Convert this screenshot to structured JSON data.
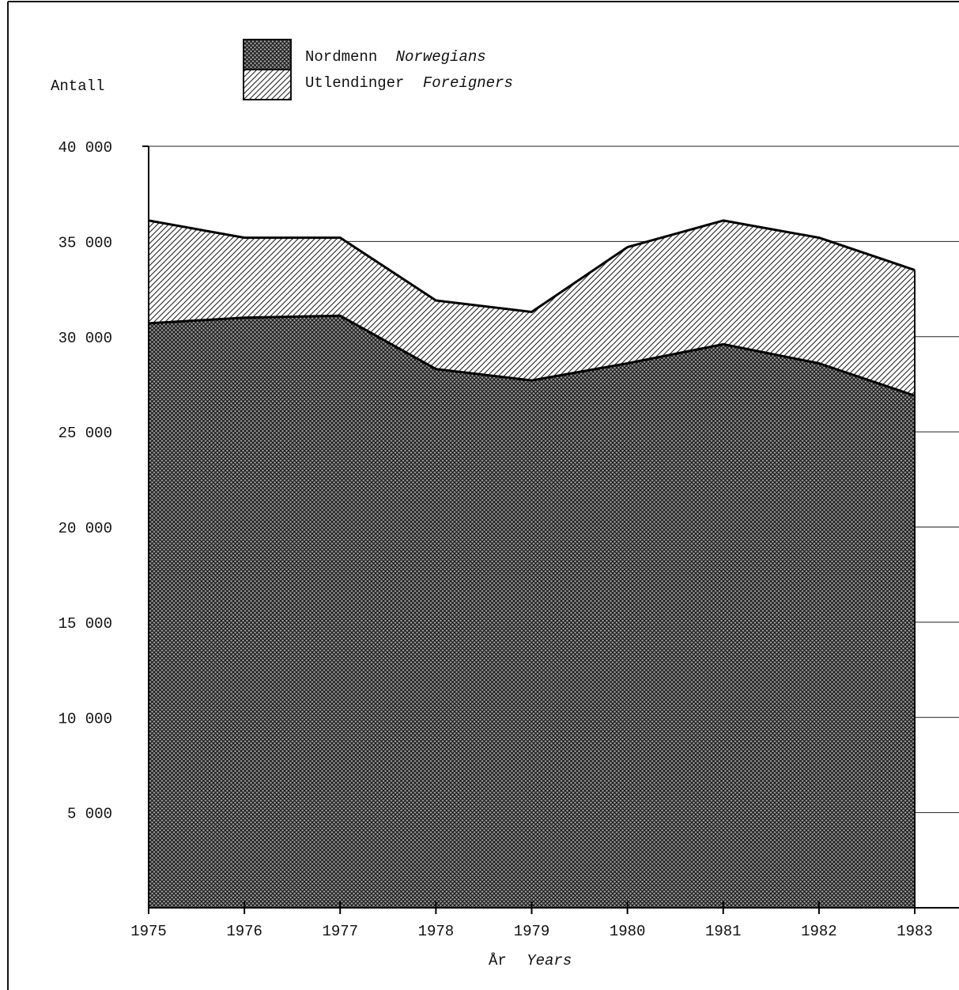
{
  "chart_data": {
    "type": "area",
    "stacked": true,
    "ylabel": "Antall",
    "xlabel": "År",
    "xlabel_en": "Years",
    "x": [
      1975,
      1976,
      1977,
      1978,
      1979,
      1980,
      1981,
      1982,
      1983
    ],
    "x_tick_labels": [
      "1975",
      "1976",
      "1977",
      "1978",
      "1979",
      "1980",
      "1981",
      "1982",
      "1983"
    ],
    "y_tick_labels": [
      "5 000",
      "10 000",
      "15 000",
      "20 000",
      "25 000",
      "30 000",
      "35 000",
      "40 000"
    ],
    "y_ticks": [
      5000,
      10000,
      15000,
      20000,
      25000,
      30000,
      35000,
      40000
    ],
    "ylim": [
      0,
      40000
    ],
    "grid": "horizontal",
    "legend_position": "top",
    "series": [
      {
        "name": "Nordmenn",
        "name_en": "Norwegians",
        "pattern": "crosshatch",
        "values": [
          30700,
          31000,
          31100,
          28300,
          27700,
          28600,
          29600,
          28600,
          26900
        ]
      },
      {
        "name": "Utlendinger",
        "name_en": "Foreigners",
        "pattern": "diagonal",
        "values": [
          5400,
          4200,
          4100,
          3600,
          3600,
          6100,
          6500,
          6600,
          6600
        ]
      }
    ]
  }
}
